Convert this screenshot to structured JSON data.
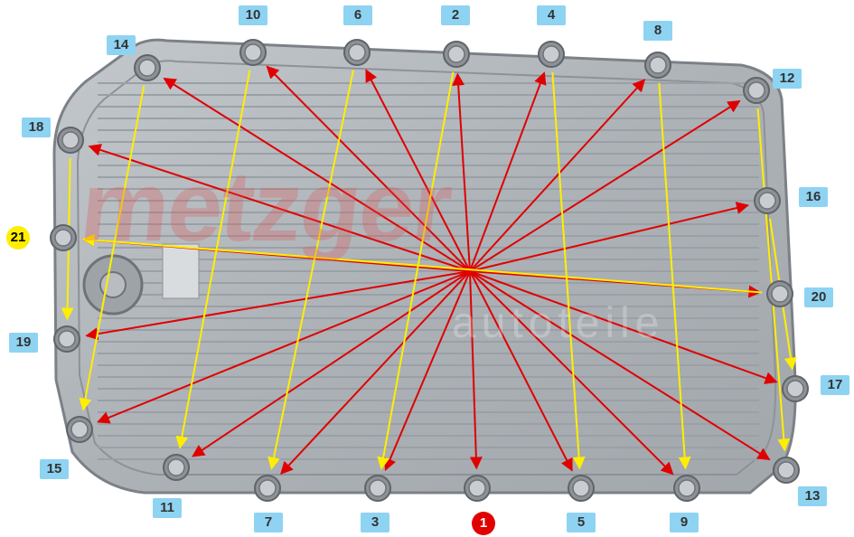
{
  "image": {
    "subject": "transmission-oil-pan-bolt-tightening-sequence",
    "watermark_text": "metzger",
    "watermark_sub_text": "autoteile"
  },
  "colors": {
    "pan_fill": "#b4b9be",
    "pan_edge": "#7c8187",
    "rib": "#9aa0a6",
    "bolt": "#c9cdd1",
    "label_bg": "#8fd3f2",
    "label_text": "#333333",
    "start_marker": "#e00000",
    "end_marker": "#ffee00",
    "red_arrow": "#e00000",
    "yellow_arrow": "#ffee00"
  },
  "sequence": [
    {
      "number": "1",
      "style": "start"
    },
    {
      "number": "2",
      "style": "normal"
    },
    {
      "number": "3",
      "style": "normal"
    },
    {
      "number": "4",
      "style": "normal"
    },
    {
      "number": "5",
      "style": "normal"
    },
    {
      "number": "6",
      "style": "normal"
    },
    {
      "number": "7",
      "style": "normal"
    },
    {
      "number": "8",
      "style": "normal"
    },
    {
      "number": "9",
      "style": "normal"
    },
    {
      "number": "10",
      "style": "normal"
    },
    {
      "number": "11",
      "style": "normal"
    },
    {
      "number": "12",
      "style": "normal"
    },
    {
      "number": "13",
      "style": "normal"
    },
    {
      "number": "14",
      "style": "normal"
    },
    {
      "number": "15",
      "style": "normal"
    },
    {
      "number": "16",
      "style": "normal"
    },
    {
      "number": "17",
      "style": "normal"
    },
    {
      "number": "18",
      "style": "normal"
    },
    {
      "number": "19",
      "style": "normal"
    },
    {
      "number": "20",
      "style": "normal"
    },
    {
      "number": "21",
      "style": "end"
    }
  ]
}
